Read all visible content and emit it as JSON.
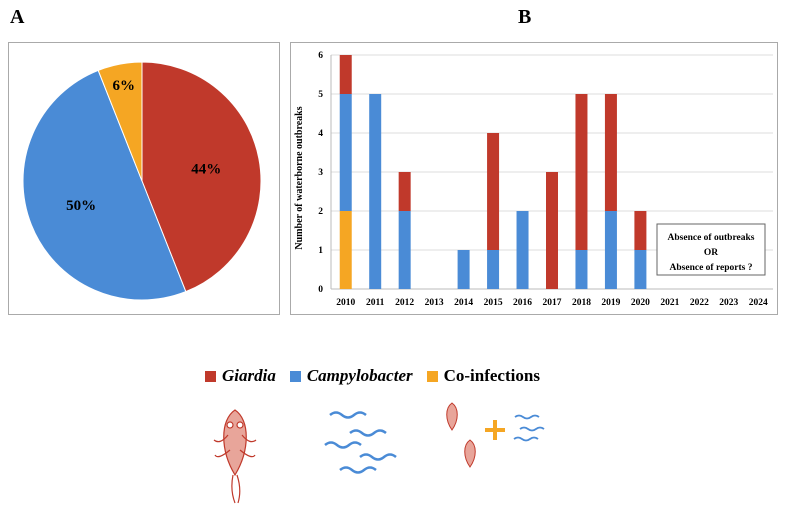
{
  "panels": {
    "a": "A",
    "b": "B"
  },
  "colors": {
    "giardia": "#c0392b",
    "campylobacter": "#4a8bd6",
    "coinfections": "#f5a623"
  },
  "chart_data": [
    {
      "type": "pie",
      "slices": [
        {
          "name": "Giardia",
          "value": 44,
          "label": "44%"
        },
        {
          "name": "Campylobacter",
          "value": 50,
          "label": "50%"
        },
        {
          "name": "Co-infections",
          "value": 6,
          "label": "6%"
        }
      ]
    },
    {
      "type": "bar",
      "stacked": true,
      "categories": [
        "2010",
        "2011",
        "2012",
        "2013",
        "2014",
        "2015",
        "2016",
        "2017",
        "2018",
        "2019",
        "2020",
        "2021",
        "2022",
        "2023",
        "2024"
      ],
      "series": [
        {
          "name": "Co-infections",
          "values": [
            2,
            0,
            0,
            0,
            0,
            0,
            0,
            0,
            0,
            0,
            0,
            0,
            0,
            0,
            0
          ]
        },
        {
          "name": "Campylobacter",
          "values": [
            3,
            5,
            2,
            0,
            1,
            1,
            2,
            0,
            1,
            2,
            1,
            0,
            0,
            0,
            0
          ]
        },
        {
          "name": "Giardia",
          "values": [
            1,
            0,
            1,
            0,
            0,
            3,
            0,
            3,
            4,
            3,
            1,
            0,
            0,
            0,
            0
          ]
        }
      ],
      "ylabel": "Number of waterborne outbreaks",
      "ylim": [
        0,
        6
      ],
      "yticks": [
        "0",
        "1",
        "2",
        "3",
        "4",
        "5",
        "6"
      ],
      "grid": true,
      "annotation": {
        "line1": "Absence of outbreaks",
        "line2": "OR",
        "line3": "Absence of reports ?"
      }
    }
  ],
  "legend": [
    {
      "name": "Giardia",
      "italic": true
    },
    {
      "name": "Campylobacter",
      "italic": true
    },
    {
      "name": "Co-infections",
      "italic": false
    }
  ]
}
